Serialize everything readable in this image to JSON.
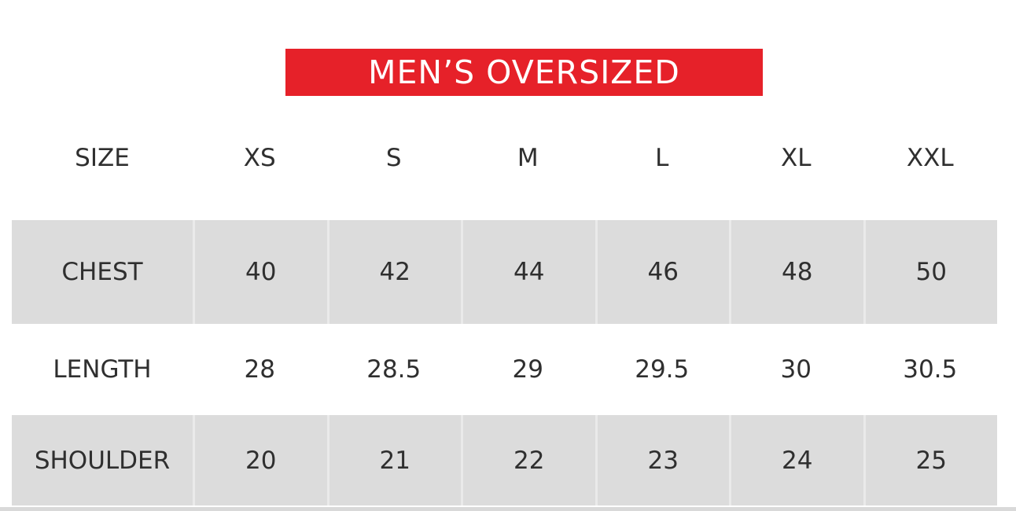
{
  "banner": {
    "title": "MEN’S OVERSIZED",
    "background_color": "#e62129",
    "text_color": "#ffffff"
  },
  "colors": {
    "shaded_row": "#dcdcdc",
    "table_text": "#2f2f2f",
    "bottom_strip": "#d9d9d9"
  },
  "chart_data": {
    "type": "table",
    "title": "MEN’S OVERSIZED",
    "columns": [
      "SIZE",
      "XS",
      "S",
      "M",
      "L",
      "XL",
      "XXL"
    ],
    "rows": [
      {
        "label": "CHEST",
        "values": [
          "40",
          "42",
          "44",
          "46",
          "48",
          "50"
        ],
        "shaded": true
      },
      {
        "label": "LENGTH",
        "values": [
          "28",
          "28.5",
          "29",
          "29.5",
          "30",
          "30.5"
        ],
        "shaded": false
      },
      {
        "label": "SHOULDER",
        "values": [
          "20",
          "21",
          "22",
          "23",
          "24",
          "25"
        ],
        "shaded": true
      }
    ]
  }
}
